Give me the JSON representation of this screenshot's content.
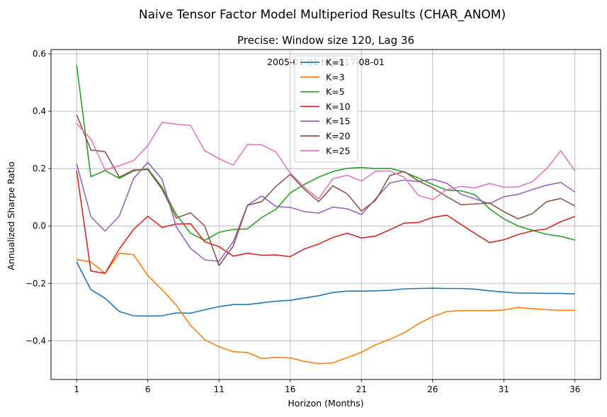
{
  "chart_data": {
    "type": "line",
    "suptitle": "Naive Tensor Factor Model Multiperiod Results (CHAR_ANOM)",
    "title": "Precise: Window size 120, Lag 36",
    "annotation": "2005-01-01 to 2017-08-01",
    "xlabel": "Horizon (Months)",
    "ylabel": "Annualized Sharpe Ratio",
    "xlim": [
      -0.8,
      37.8
    ],
    "ylim": [
      -0.535,
      0.615
    ],
    "xticks": [
      1,
      6,
      11,
      16,
      21,
      26,
      31,
      36
    ],
    "yticks": [
      -0.4,
      -0.2,
      0.0,
      0.2,
      0.4,
      0.6
    ],
    "ytick_labels": [
      "−0.4",
      "−0.2",
      "0.0",
      "0.2",
      "0.4",
      "0.6"
    ],
    "grid": true,
    "legend_position": "upper-center",
    "x": [
      1,
      2,
      3,
      4,
      5,
      6,
      7,
      8,
      9,
      10,
      11,
      12,
      13,
      14,
      15,
      16,
      17,
      18,
      19,
      20,
      21,
      22,
      23,
      24,
      25,
      26,
      27,
      28,
      29,
      30,
      31,
      32,
      33,
      34,
      35,
      36
    ],
    "series": [
      {
        "name": "K=1",
        "color": "#1f77b4",
        "values": [
          -0.125,
          -0.222,
          -0.252,
          -0.298,
          -0.313,
          -0.314,
          -0.313,
          -0.303,
          -0.304,
          -0.292,
          -0.281,
          -0.274,
          -0.274,
          -0.268,
          -0.262,
          -0.259,
          -0.251,
          -0.243,
          -0.232,
          -0.227,
          -0.227,
          -0.226,
          -0.224,
          -0.219,
          -0.218,
          -0.217,
          -0.218,
          -0.218,
          -0.22,
          -0.226,
          -0.23,
          -0.234,
          -0.234,
          -0.235,
          -0.235,
          -0.237
        ]
      },
      {
        "name": "K=3",
        "color": "#ff7f0e",
        "values": [
          -0.117,
          -0.125,
          -0.165,
          -0.095,
          -0.1,
          -0.173,
          -0.222,
          -0.276,
          -0.346,
          -0.396,
          -0.421,
          -0.438,
          -0.441,
          -0.462,
          -0.458,
          -0.46,
          -0.472,
          -0.48,
          -0.477,
          -0.459,
          -0.44,
          -0.414,
          -0.395,
          -0.372,
          -0.341,
          -0.316,
          -0.298,
          -0.295,
          -0.295,
          -0.295,
          -0.293,
          -0.284,
          -0.288,
          -0.292,
          -0.294,
          -0.294
        ]
      },
      {
        "name": "K=5",
        "color": "#2ca02c",
        "values": [
          0.562,
          0.172,
          0.193,
          0.166,
          0.192,
          0.2,
          0.135,
          0.04,
          -0.025,
          -0.05,
          -0.022,
          -0.012,
          -0.01,
          0.03,
          0.058,
          0.115,
          0.145,
          0.17,
          0.19,
          0.201,
          0.204,
          0.2,
          0.201,
          0.188,
          0.167,
          0.145,
          0.125,
          0.123,
          0.108,
          0.06,
          0.025,
          0.0,
          -0.015,
          -0.029,
          -0.036,
          -0.049
        ]
      },
      {
        "name": "K=10",
        "color": "#d62728",
        "values": [
          0.193,
          -0.157,
          -0.165,
          -0.08,
          -0.012,
          0.034,
          -0.005,
          0.007,
          0.008,
          -0.055,
          -0.072,
          -0.105,
          -0.095,
          -0.102,
          -0.101,
          -0.107,
          -0.08,
          -0.063,
          -0.04,
          -0.025,
          -0.042,
          -0.035,
          -0.013,
          0.01,
          0.012,
          0.03,
          0.038,
          0.005,
          -0.027,
          -0.058,
          -0.048,
          -0.03,
          -0.017,
          -0.01,
          0.015,
          0.033
        ]
      },
      {
        "name": "K=15",
        "color": "#9467bd",
        "values": [
          0.217,
          0.033,
          -0.018,
          0.035,
          0.165,
          0.222,
          0.163,
          -0.003,
          -0.078,
          -0.118,
          -0.123,
          -0.055,
          0.072,
          0.105,
          0.068,
          0.065,
          0.05,
          0.045,
          0.066,
          0.06,
          0.04,
          0.095,
          0.15,
          0.16,
          0.155,
          0.163,
          0.149,
          0.111,
          0.094,
          0.078,
          0.102,
          0.11,
          0.127,
          0.142,
          0.152,
          0.118
        ]
      },
      {
        "name": "K=20",
        "color": "#8c564b",
        "values": [
          0.388,
          0.265,
          0.259,
          0.17,
          0.195,
          0.197,
          0.128,
          0.028,
          0.046,
          0.0,
          -0.138,
          -0.07,
          0.072,
          0.085,
          0.138,
          0.18,
          0.128,
          0.085,
          0.14,
          0.112,
          0.052,
          0.09,
          0.176,
          0.19,
          0.157,
          0.133,
          0.102,
          0.074,
          0.077,
          0.08,
          0.05,
          0.025,
          0.043,
          0.085,
          0.096,
          0.07
        ]
      },
      {
        "name": "K=25",
        "color": "#e377c2",
        "values": [
          0.357,
          0.303,
          0.196,
          0.21,
          0.228,
          0.28,
          0.361,
          0.355,
          0.351,
          0.262,
          0.235,
          0.212,
          0.284,
          0.283,
          0.258,
          0.185,
          0.135,
          0.095,
          0.165,
          0.177,
          0.157,
          0.191,
          0.192,
          0.17,
          0.107,
          0.092,
          0.127,
          0.138,
          0.133,
          0.148,
          0.135,
          0.136,
          0.154,
          0.2,
          0.262,
          0.192
        ]
      }
    ]
  }
}
